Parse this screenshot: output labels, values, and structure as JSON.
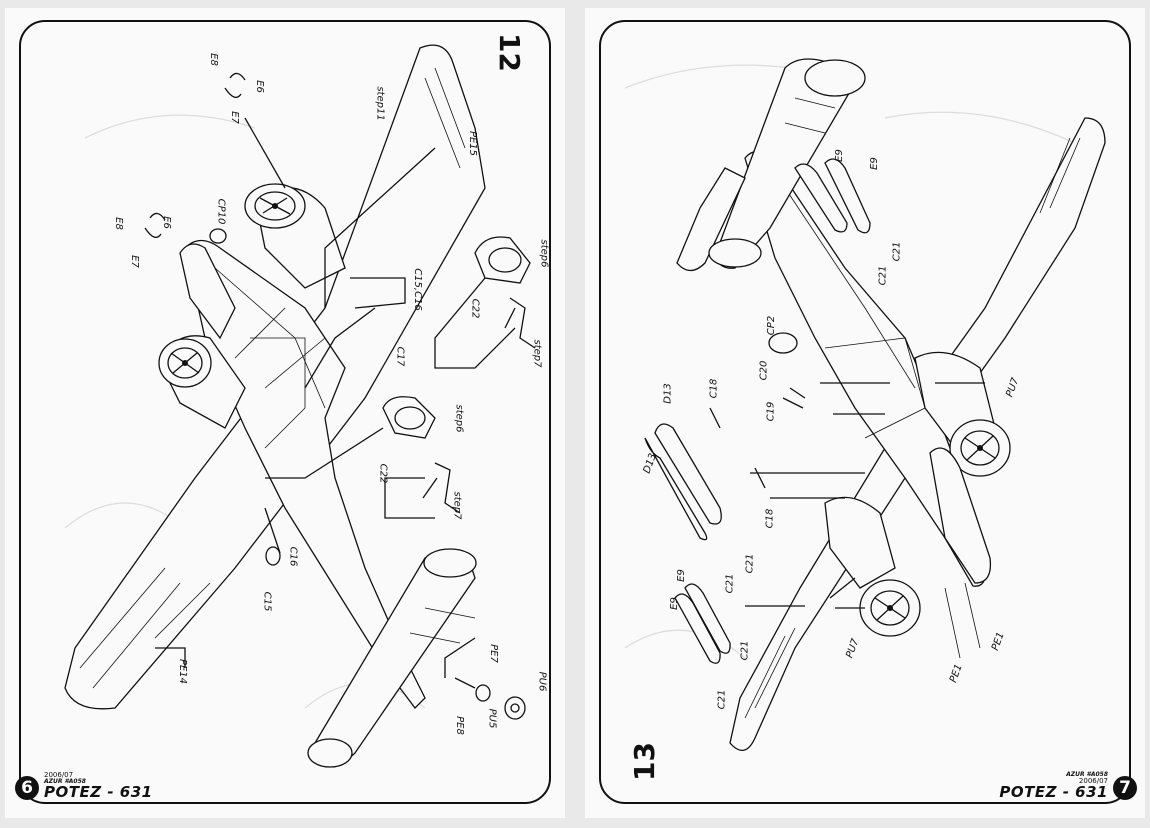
{
  "left_page": {
    "step": "12",
    "page_number": "6",
    "date": "2006/07",
    "ref": "AZUR #A058",
    "model": "POTEZ - 631",
    "labels": {
      "step11": "step11",
      "pe15": "PE15",
      "e8_top": "E8",
      "e6_top": "E6",
      "e7_top": "E7",
      "e8_mid": "E8",
      "e6_mid": "E6",
      "e7_mid": "E7",
      "cp10": "CP10",
      "c15_c16": "C15,C16",
      "c17": "C17",
      "step6_top": "step6",
      "c22_top": "C22",
      "step7_top": "step7",
      "step6_bottom": "step6",
      "c22_bottom": "C22",
      "step7_bottom": "step7",
      "c16": "C16",
      "c15": "C15",
      "pe14": "PE14",
      "pe7": "PE7",
      "pe8": "PE8",
      "pu5": "PU5",
      "pu6": "PU6"
    }
  },
  "right_page": {
    "step": "13",
    "page_number": "7",
    "date": "2006/07",
    "ref": "AZUR #A058",
    "model": "POTEZ - 631",
    "labels": {
      "e9_a": "E9",
      "e9_b": "E9",
      "c21_a": "C21",
      "c21_b": "C21",
      "cp2": "CP2",
      "c20": "C20",
      "c18_top": "C18",
      "c19": "C19",
      "d13_top": "D13",
      "d13_bottom": "D13",
      "c18_bottom": "C18",
      "pu7_right": "PU7",
      "c21_c": "C21",
      "c21_d": "C21",
      "e9_c": "E9",
      "e9_d": "E9",
      "c21_e": "C21",
      "c21_f": "C21",
      "pu7_bottom": "PU7",
      "pe1_a": "PE1",
      "pe1_b": "PE1"
    }
  }
}
